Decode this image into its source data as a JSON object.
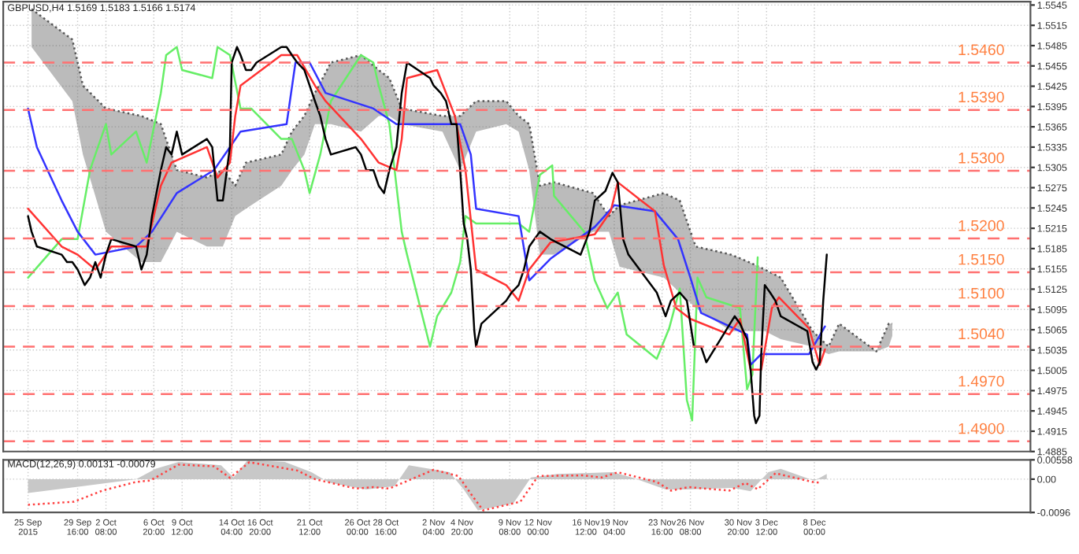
{
  "chart_data": [
    {
      "type": "line",
      "title": "GBPUSD,H4 1.5169 1.5183 1.5166 1.5174",
      "xlim": [
        "2015-09-22T16:00",
        "2015-12-28T08:00"
      ],
      "ylim": [
        1.4885,
        1.555
      ],
      "xticks": [
        "2015-09-25T00:00",
        "2015-09-29T16:00",
        "2015-10-02T08:00",
        "2015-10-06T20:00",
        "2015-10-09T12:00",
        "2015-10-14T04:00",
        "2015-10-16T20:00",
        "2015-10-21T12:00",
        "2015-10-26T00:00",
        "2015-10-28T16:00",
        "2015-11-02T04:00",
        "2015-11-04T20:00",
        "2015-11-09T08:00",
        "2015-11-12T00:00",
        "2015-11-16T12:00",
        "2015-11-19T04:00",
        "2015-11-23T16:00",
        "2015-11-26T08:00",
        "2015-11-30T20:00",
        "2015-12-03T12:00",
        "2015-12-08T00:00"
      ],
      "yticks": [
        1.5545,
        1.5515,
        1.5485,
        1.5455,
        1.5425,
        1.5395,
        1.5365,
        1.5335,
        1.5305,
        1.5275,
        1.5245,
        1.5215,
        1.5185,
        1.5155,
        1.5125,
        1.5095,
        1.5065,
        1.5035,
        1.5005,
        1.4975,
        1.4945,
        1.4915,
        1.4885
      ],
      "tick_labels": "y",
      "grid": true,
      "legend": false,
      "series": [
        {
          "color": "#555555",
          "line_style": "dotted",
          "x": [
            "2015-09-25T08:00",
            "2015-09-29T04:00",
            "2015-09-30T04:00",
            "2015-10-02T08:00",
            "2015-10-05T16:00",
            "2015-10-07T12:00",
            "2015-10-09T00:00",
            "2015-10-11T20:00",
            "2015-10-13T08:00",
            "2015-10-14T12:00",
            "2015-10-15T12:00",
            "2015-10-18T20:00",
            "2015-10-19T20:00",
            "2015-10-21T00:00",
            "2015-10-22T00:00",
            "2015-10-23T12:00",
            "2015-10-26T08:00",
            "2015-10-28T00:00",
            "2015-10-29T00:00",
            "2015-10-30T04:00",
            "2015-11-03T00:00",
            "2015-11-04T16:00",
            "2015-11-06T04:00",
            "2015-11-09T00:00",
            "2015-11-10T04:00",
            "2015-11-11T04:00",
            "2015-11-12T04:00",
            "2015-11-13T12:00",
            "2015-11-17T04:00",
            "2015-11-18T16:00",
            "2015-11-19T16:00",
            "2015-11-23T20:00",
            "2015-11-25T08:00",
            "2015-11-26T20:00",
            "2015-11-30T04:00",
            "2015-12-01T20:00",
            "2015-12-03T08:00",
            "2015-12-04T20:00",
            "2015-12-07T20:00",
            "2015-12-09T08:00",
            "2015-12-10T08:00",
            "2015-12-13T20:00",
            "2015-12-15T00:00",
            "2015-12-15T08:00"
          ],
          "values": [
            1.5539,
            1.5494,
            1.5426,
            1.5392,
            1.5381,
            1.5369,
            1.5301,
            1.529,
            1.5301,
            1.5278,
            1.5312,
            1.5324,
            1.5358,
            1.5381,
            1.5415,
            1.546,
            1.5471,
            1.5449,
            1.5437,
            1.5392,
            1.5381,
            1.5381,
            1.5403,
            1.5403,
            1.5381,
            1.5369,
            1.5278,
            1.5283,
            1.5267,
            1.5233,
            1.5249,
            1.5267,
            1.5256,
            1.5188,
            1.5176,
            1.5165,
            1.5154,
            1.5142,
            1.5063,
            1.504,
            1.5074,
            1.5033,
            1.5074,
            1.5074
          ],
          "upper": [
            1.5539,
            1.5494,
            1.5426,
            1.5392,
            1.5381,
            1.5369,
            1.5301,
            1.529,
            1.5301,
            1.5278,
            1.5312,
            1.5324,
            1.5358,
            1.5381,
            1.5415,
            1.546,
            1.5471,
            1.5449,
            1.5437,
            1.5392,
            1.5381,
            1.5381,
            1.5403,
            1.5403,
            1.5381,
            1.5369,
            1.5278,
            1.5283,
            1.5267,
            1.5233,
            1.5249,
            1.5267,
            1.5256,
            1.5188,
            1.5176,
            1.5165,
            1.5154,
            1.5142,
            1.5063,
            1.504,
            1.5074,
            1.5033,
            1.5074,
            1.5074
          ],
          "lower": [
            1.5483,
            1.5403,
            1.5324,
            1.521,
            1.5165,
            1.5165,
            1.521,
            1.5188,
            1.5188,
            1.5233,
            1.5244,
            1.5278,
            1.5301,
            1.5324,
            1.5369,
            1.5369,
            1.5358,
            1.5381,
            1.5381,
            1.5369,
            1.5358,
            1.5301,
            1.5358,
            1.5369,
            1.5358,
            1.5301,
            1.5176,
            1.5176,
            1.521,
            1.521,
            1.5158,
            1.5142,
            1.512,
            1.5097,
            1.5063,
            1.5063,
            1.5063,
            1.5051,
            1.504,
            1.5029,
            1.5033,
            1.5033,
            1.504,
            1.5056
          ]
        },
        {
          "color": "#66ee66",
          "x": [
            "2015-09-25T00:00",
            "2015-09-28T04:00",
            "2015-09-29T16:00",
            "2015-09-30T20:00",
            "2015-10-01T08:00",
            "2015-10-02T08:00",
            "2015-10-02T20:00",
            "2015-10-05T04:00",
            "2015-10-05T16:00",
            "2015-10-06T04:00",
            "2015-10-07T12:00",
            "2015-10-08T00:00",
            "2015-10-09T00:00",
            "2015-10-09T12:00",
            "2015-10-12T08:00",
            "2015-10-12T20:00",
            "2015-10-14T00:00",
            "2015-10-15T00:00",
            "2015-10-16T00:00",
            "2015-10-18T20:00",
            "2015-10-19T20:00",
            "2015-10-21T00:00",
            "2015-10-21T12:00",
            "2015-10-22T12:00",
            "2015-10-23T12:00",
            "2015-10-26T08:00",
            "2015-10-27T12:00",
            "2015-10-28T00:00",
            "2015-10-29T00:00",
            "2015-10-30T04:00",
            "2015-10-30T16:00",
            "2015-11-01T20:00",
            "2015-11-02T12:00",
            "2015-11-03T20:00",
            "2015-11-04T16:00",
            "2015-11-05T04:00",
            "2015-11-06T04:00",
            "2015-11-10T04:00",
            "2015-11-11T04:00",
            "2015-11-12T04:00",
            "2015-11-13T08:00",
            "2015-11-13T12:00",
            "2015-11-16T08:00",
            "2015-11-17T08:00",
            "2015-11-18T12:00",
            "2015-11-19T12:00",
            "2015-11-20T08:00",
            "2015-11-23T04:00",
            "2015-11-24T08:00",
            "2015-11-25T08:00",
            "2015-11-26T00:00",
            "2015-11-26T12:00",
            "2015-11-27T00:00",
            "2015-11-27T20:00",
            "2015-12-01T00:00",
            "2015-12-01T16:00",
            "2015-12-02T04:00",
            "2015-12-02T16:00"
          ],
          "values": [
            1.5142,
            1.5199,
            1.5199,
            1.5301,
            1.5324,
            1.5369,
            1.5324,
            1.5358,
            1.5335,
            1.5312,
            1.5415,
            1.5471,
            1.5483,
            1.5449,
            1.5437,
            1.5483,
            1.5471,
            1.5392,
            1.5392,
            1.5347,
            1.5347,
            1.5301,
            1.5267,
            1.5324,
            1.5403,
            1.5471,
            1.546,
            1.5426,
            1.5369,
            1.521,
            1.5176,
            1.504,
            1.5085,
            1.512,
            1.5165,
            1.5233,
            1.5222,
            1.5222,
            1.521,
            1.5294,
            1.5308,
            1.5263,
            1.521,
            1.5138,
            1.5097,
            1.512,
            1.5058,
            1.5022,
            1.5067,
            1.5126,
            1.4961,
            1.4931,
            1.5142,
            1.5113,
            1.5097,
            1.4977,
            1.4999,
            1.5172
          ]
        },
        {
          "color": "#3333ff",
          "x": [
            "2015-09-25T00:00",
            "2015-09-25T20:00",
            "2015-09-28T04:00",
            "2015-09-29T16:00",
            "2015-10-01T08:00",
            "2015-10-05T04:00",
            "2015-10-06T16:00",
            "2015-10-09T00:00",
            "2015-10-12T12:00",
            "2015-10-14T00:00",
            "2015-10-15T00:00",
            "2015-10-19T08:00",
            "2015-10-20T04:00",
            "2015-10-21T12:00",
            "2015-10-23T00:00",
            "2015-10-27T12:00",
            "2015-10-29T16:00",
            "2015-11-04T16:00",
            "2015-11-05T16:00",
            "2015-11-06T04:00",
            "2015-11-10T04:00",
            "2015-11-11T04:00",
            "2015-11-13T04:00",
            "2015-11-17T08:00",
            "2015-11-19T04:00",
            "2015-11-23T00:00",
            "2015-11-25T04:00",
            "2015-11-26T08:00",
            "2015-11-27T08:00",
            "2015-12-01T16:00",
            "2015-12-02T00:00",
            "2015-12-03T00:00",
            "2015-12-07T12:00",
            "2015-12-09T00:00"
          ],
          "values": [
            1.5392,
            1.5335,
            1.5256,
            1.521,
            1.5176,
            1.5188,
            1.521,
            1.5267,
            1.5301,
            1.5335,
            1.5358,
            1.5369,
            1.546,
            1.546,
            1.5415,
            1.5392,
            1.5369,
            1.5369,
            1.5324,
            1.5244,
            1.5233,
            1.5138,
            1.517,
            1.5217,
            1.5249,
            1.524,
            1.5199,
            1.5142,
            1.509,
            1.5058,
            1.5013,
            1.5029,
            1.5029,
            1.507
          ]
        },
        {
          "color": "#ff3333",
          "x": [
            "2015-09-25T00:00",
            "2015-09-28T04:00",
            "2015-09-29T16:00",
            "2015-10-01T08:00",
            "2015-10-02T20:00",
            "2015-10-06T04:00",
            "2015-10-07T12:00",
            "2015-10-08T12:00",
            "2015-10-11T20:00",
            "2015-10-12T20:00",
            "2015-10-14T00:00",
            "2015-10-14T12:00",
            "2015-10-15T00:00",
            "2015-10-18T20:00",
            "2015-10-20T08:00",
            "2015-10-22T00:00",
            "2015-10-23T00:00",
            "2015-10-26T08:00",
            "2015-10-28T00:00",
            "2015-10-29T16:00",
            "2015-10-30T04:00",
            "2015-10-30T16:00",
            "2015-11-02T12:00",
            "2015-11-04T04:00",
            "2015-11-05T04:00",
            "2015-11-06T04:00",
            "2015-11-09T00:00",
            "2015-11-10T04:00",
            "2015-11-11T04:00",
            "2015-11-13T04:00",
            "2015-11-17T08:00",
            "2015-11-18T20:00",
            "2015-11-19T12:00",
            "2015-11-23T00:00",
            "2015-11-23T20:00",
            "2015-11-25T00:00",
            "2015-11-26T08:00",
            "2015-11-30T00:00",
            "2015-12-01T00:00",
            "2015-12-02T00:00",
            "2015-12-03T00:00",
            "2015-12-04T00:00",
            "2015-12-04T16:00",
            "2015-12-07T12:00",
            "2015-12-08T12:00",
            "2015-12-09T00:00"
          ],
          "values": [
            1.5244,
            1.5188,
            1.5176,
            1.5154,
            1.5188,
            1.5188,
            1.5278,
            1.5312,
            1.5335,
            1.529,
            1.5312,
            1.5381,
            1.5426,
            1.5471,
            1.5471,
            1.5426,
            1.5403,
            1.5347,
            1.5312,
            1.5301,
            1.5347,
            1.5437,
            1.5449,
            1.5381,
            1.5301,
            1.5154,
            1.5131,
            1.5108,
            1.5154,
            1.5194,
            1.5206,
            1.524,
            1.5283,
            1.524,
            1.516,
            1.5097,
            1.5081,
            1.5058,
            1.5081,
            1.5006,
            1.5006,
            1.5097,
            1.5113,
            1.5067,
            1.5013,
            1.5036
          ]
        },
        {
          "color": "#000000",
          "x": [
            "2015-09-25T00:00",
            "2015-09-25T08:00",
            "2015-09-25T20:00",
            "2015-09-28T04:00",
            "2015-09-28T16:00",
            "2015-09-29T04:00",
            "2015-09-29T16:00",
            "2015-09-30T08:00",
            "2015-09-30T20:00",
            "2015-10-01T08:00",
            "2015-10-01T20:00",
            "2015-10-02T08:00",
            "2015-10-02T20:00",
            "2015-10-05T04:00",
            "2015-10-05T16:00",
            "2015-10-06T04:00",
            "2015-10-06T16:00",
            "2015-10-07T12:00",
            "2015-10-08T00:00",
            "2015-10-08T12:00",
            "2015-10-09T00:00",
            "2015-10-09T12:00",
            "2015-10-11T20:00",
            "2015-10-12T08:00",
            "2015-10-12T20:00",
            "2015-10-13T08:00",
            "2015-10-14T00:00",
            "2015-10-14T04:00",
            "2015-10-14T16:00",
            "2015-10-15T00:00",
            "2015-10-15T12:00",
            "2015-10-16T00:00",
            "2015-10-16T12:00",
            "2015-10-18T20:00",
            "2015-10-19T08:00",
            "2015-10-19T20:00",
            "2015-10-20T08:00",
            "2015-10-21T00:00",
            "2015-10-21T12:00",
            "2015-10-22T00:00",
            "2015-10-22T12:00",
            "2015-10-23T00:00",
            "2015-10-23T12:00",
            "2015-10-25T20:00",
            "2015-10-26T08:00",
            "2015-10-26T20:00",
            "2015-10-27T12:00",
            "2015-10-28T00:00",
            "2015-10-28T12:00",
            "2015-10-29T00:00",
            "2015-10-29T16:00",
            "2015-10-30T04:00",
            "2015-10-30T16:00",
            "2015-11-01T20:00",
            "2015-11-02T04:00",
            "2015-11-02T20:00",
            "2015-11-03T08:00",
            "2015-11-03T20:00",
            "2015-11-04T08:00",
            "2015-11-04T16:00",
            "2015-11-05T00:00",
            "2015-11-05T08:00",
            "2015-11-05T16:00",
            "2015-11-06T00:00",
            "2015-11-06T04:00",
            "2015-11-06T16:00",
            "2015-11-09T00:00",
            "2015-11-09T12:00",
            "2015-11-10T04:00",
            "2015-11-10T16:00",
            "2015-11-11T04:00",
            "2015-11-11T16:00",
            "2015-11-12T04:00",
            "2015-11-13T04:00",
            "2015-11-16T00:00",
            "2015-11-16T20:00",
            "2015-11-17T08:00",
            "2015-11-18T08:00",
            "2015-11-19T00:00",
            "2015-11-19T12:00",
            "2015-11-20T00:00",
            "2015-11-20T12:00",
            "2015-11-23T04:00",
            "2015-11-24T00:00",
            "2015-11-24T12:00",
            "2015-11-25T08:00",
            "2015-11-26T00:00",
            "2015-11-26T16:00",
            "2015-11-27T08:00",
            "2015-11-27T20:00",
            "2015-11-30T12:00",
            "2015-12-01T00:00",
            "2015-12-01T16:00",
            "2015-12-02T00:00",
            "2015-12-02T08:00",
            "2015-12-02T12:00",
            "2015-12-02T20:00",
            "2015-12-03T00:00",
            "2015-12-03T08:00",
            "2015-12-03T20:00",
            "2015-12-04T08:00",
            "2015-12-04T20:00",
            "2015-12-07T08:00",
            "2015-12-07T20:00",
            "2015-12-08T04:00",
            "2015-12-08T12:00",
            "2015-12-08T20:00",
            "2015-12-09T04:00"
          ],
          "values": [
            1.5233,
            1.521,
            1.5188,
            1.5176,
            1.5165,
            1.5165,
            1.5154,
            1.5131,
            1.5142,
            1.5165,
            1.5142,
            1.5176,
            1.5199,
            1.5188,
            1.5154,
            1.5176,
            1.5233,
            1.5301,
            1.5335,
            1.5324,
            1.5358,
            1.5324,
            1.5347,
            1.5335,
            1.5256,
            1.5256,
            1.5335,
            1.546,
            1.5483,
            1.5471,
            1.5449,
            1.5449,
            1.546,
            1.5483,
            1.5483,
            1.5471,
            1.546,
            1.5449,
            1.5426,
            1.5403,
            1.5381,
            1.5347,
            1.5324,
            1.5335,
            1.5324,
            1.5301,
            1.5301,
            1.5278,
            1.5267,
            1.5301,
            1.5335,
            1.5415,
            1.546,
            1.5437,
            1.5426,
            1.5415,
            1.5403,
            1.5369,
            1.5369,
            1.5301,
            1.5222,
            1.5199,
            1.5154,
            1.5063,
            1.504,
            1.5074,
            1.5108,
            1.512,
            1.5131,
            1.5154,
            1.5188,
            1.5199,
            1.521,
            1.5199,
            1.5176,
            1.521,
            1.5256,
            1.527,
            1.5297,
            1.5283,
            1.5199,
            1.5176,
            1.512,
            1.5085,
            1.5108,
            1.512,
            1.5108,
            1.504,
            1.504,
            1.5017,
            1.5085,
            1.5074,
            1.5051,
            1.5006,
            1.4938,
            1.4927,
            1.4938,
            1.5029,
            1.5131,
            1.512,
            1.5108,
            1.5085,
            1.5063,
            1.5017,
            1.5006,
            1.5017,
            1.5108,
            1.5176
          ]
        }
      ],
      "ref_lines": [
        {
          "axis": "y",
          "value": 1.546,
          "label": "1.5460",
          "color": "#ff7070",
          "line_style": "dashed"
        },
        {
          "axis": "y",
          "value": 1.539,
          "label": "1.5390",
          "color": "#ff7070",
          "line_style": "dashed"
        },
        {
          "axis": "y",
          "value": 1.53,
          "label": "1.5300",
          "color": "#ff7070",
          "line_style": "dashed"
        },
        {
          "axis": "y",
          "value": 1.52,
          "label": "1.5200",
          "color": "#ff7070",
          "line_style": "dashed"
        },
        {
          "axis": "y",
          "value": 1.515,
          "label": "1.5150",
          "color": "#ff7070",
          "line_style": "dashed"
        },
        {
          "axis": "y",
          "value": 1.51,
          "label": "1.5100",
          "color": "#ff7070",
          "line_style": "dashed"
        },
        {
          "axis": "y",
          "value": 1.504,
          "label": "1.5040",
          "color": "#ff7070",
          "line_style": "dashed"
        },
        {
          "axis": "y",
          "value": 1.497,
          "label": "1.4970",
          "color": "#ff7070",
          "line_style": "dashed"
        },
        {
          "axis": "y",
          "value": 1.49,
          "label": "1.4900",
          "color": "#ff7070",
          "line_style": "dashed"
        }
      ]
    },
    {
      "type": "line",
      "title": "MACD(12,26,9) 0.00131 -0.00079",
      "xlim": [
        "2015-09-22T16:00",
        "2015-12-28T08:00"
      ],
      "ylim": [
        -0.0096,
        0.00558
      ],
      "xticks": [
        {
          "value": "2015-09-25T00:00",
          "label": "25 Sep 2015"
        },
        {
          "value": "2015-09-29T16:00",
          "label": "29 Sep 16:00"
        },
        {
          "value": "2015-10-02T08:00",
          "label": "2 Oct 08:00"
        },
        {
          "value": "2015-10-06T20:00",
          "label": "6 Oct 20:00"
        },
        {
          "value": "2015-10-09T12:00",
          "label": "9 Oct 12:00"
        },
        {
          "value": "2015-10-14T04:00",
          "label": "14 Oct 04:00"
        },
        {
          "value": "2015-10-16T20:00",
          "label": "16 Oct 20:00"
        },
        {
          "value": "2015-10-21T12:00",
          "label": "21 Oct 12:00"
        },
        {
          "value": "2015-10-26T00:00",
          "label": "26 Oct 00:00"
        },
        {
          "value": "2015-10-28T16:00",
          "label": "28 Oct 16:00"
        },
        {
          "value": "2015-11-02T04:00",
          "label": "2 Nov 04:00"
        },
        {
          "value": "2015-11-04T20:00",
          "label": "4 Nov 20:00"
        },
        {
          "value": "2015-11-09T08:00",
          "label": "9 Nov 08:00"
        },
        {
          "value": "2015-11-12T00:00",
          "label": "12 Nov 00:00"
        },
        {
          "value": "2015-11-16T12:00",
          "label": "16 Nov 12:00"
        },
        {
          "value": "2015-11-19T04:00",
          "label": "19 Nov 04:00"
        },
        {
          "value": "2015-11-23T16:00",
          "label": "23 Nov 16:00"
        },
        {
          "value": "2015-11-26T08:00",
          "label": "26 Nov 08:00"
        },
        {
          "value": "2015-11-30T20:00",
          "label": "30 Nov 20:00"
        },
        {
          "value": "2015-12-03T12:00",
          "label": "3 Dec 12:00"
        },
        {
          "value": "2015-12-08T00:00",
          "label": "8 Dec 00:00"
        }
      ],
      "yticks": [
        0.00558,
        {
          "value": 0,
          "label": "0.00"
        },
        -0.0096
      ],
      "grid": true,
      "legend": false,
      "series": [
        {
          "type": "area",
          "color": "#c8c8c8",
          "x": [
            "2015-09-25T00:00",
            "2015-09-30T04:00",
            "2015-10-05T04:00",
            "2015-10-07T00:00",
            "2015-10-09T04:00",
            "2015-10-13T04:00",
            "2015-10-14T08:00",
            "2015-10-15T16:00",
            "2015-10-19T04:00",
            "2015-10-21T16:00",
            "2015-10-23T08:00",
            "2015-10-26T20:00",
            "2015-10-29T12:00",
            "2015-10-30T20:00",
            "2015-11-03T16:00",
            "2015-11-05T00:00",
            "2015-11-06T08:00",
            "2015-11-09T16:00",
            "2015-11-11T08:00",
            "2015-11-13T20:00",
            "2015-11-19T00:00",
            "2015-11-20T20:00",
            "2015-11-24T00:00",
            "2015-11-26T00:00",
            "2015-11-30T08:00",
            "2015-12-02T00:00",
            "2015-12-03T16:00",
            "2015-12-04T20:00",
            "2015-12-08T00:00",
            "2015-12-09T04:00"
          ],
          "values": [
            -0.004,
            -0.002,
            0.0,
            0.003,
            0.005,
            0.004,
            0.0005,
            0.0055,
            0.005,
            0.002,
            -0.001,
            -0.003,
            -0.002,
            0.004,
            0.002,
            -0.003,
            -0.009,
            -0.007,
            0.0005,
            0.0015,
            0.002,
            0.0005,
            -0.003,
            -0.003,
            -0.0025,
            -0.0035,
            0.002,
            0.003,
            -0.0005,
            0.0015
          ]
        },
        {
          "color": "#ff4040",
          "line_style": "dotted",
          "x": [
            "2015-09-25T00:00",
            "2015-09-29T08:00",
            "2015-10-02T00:00",
            "2015-10-05T04:00",
            "2015-10-06T12:00",
            "2015-10-09T04:00",
            "2015-10-12T12:00",
            "2015-10-14T00:00",
            "2015-10-15T20:00",
            "2015-10-20T08:00",
            "2015-10-22T00:00",
            "2015-10-25T20:00",
            "2015-10-27T12:00",
            "2015-10-29T00:00",
            "2015-11-02T04:00",
            "2015-11-04T12:00",
            "2015-11-05T20:00",
            "2015-11-06T20:00",
            "2015-11-10T08:00",
            "2015-11-12T00:00",
            "2015-11-16T04:00",
            "2015-11-18T00:00",
            "2015-11-19T12:00",
            "2015-11-23T04:00",
            "2015-11-24T12:00",
            "2015-11-26T04:00",
            "2015-11-30T00:00",
            "2015-12-01T12:00",
            "2015-12-02T16:00",
            "2015-12-04T08:00",
            "2015-12-07T20:00",
            "2015-12-08T16:00"
          ],
          "values": [
            -0.0074,
            -0.0065,
            -0.0033,
            -0.0008,
            -0.0004,
            0.0042,
            0.0037,
            0.0004,
            0.0049,
            0.0025,
            0.0,
            -0.0027,
            -0.0023,
            -0.0027,
            0.0027,
            0.0009,
            -0.0049,
            -0.009,
            -0.0065,
            0.0009,
            0.0011,
            0.0005,
            0.002,
            -0.0008,
            -0.0033,
            -0.0023,
            -0.0033,
            -0.0011,
            -0.0029,
            0.0017,
            -0.0008,
            -0.0011
          ]
        }
      ]
    }
  ]
}
